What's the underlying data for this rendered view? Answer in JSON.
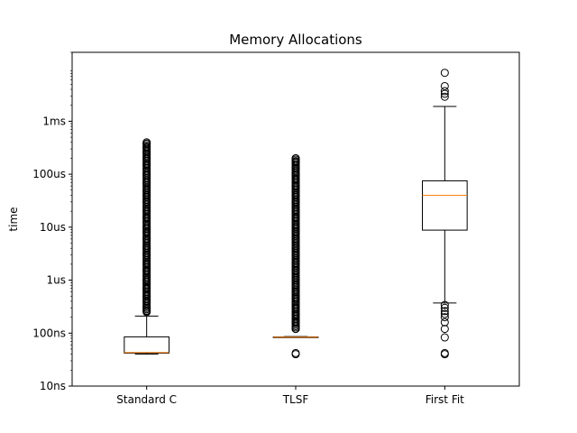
{
  "chart_data": {
    "type": "box",
    "title": "Memory Allocations",
    "xlabel": "",
    "ylabel": "time",
    "y_scale": "log",
    "y_unit": "seconds",
    "ylim": [
      1e-08,
      0.02
    ],
    "y_ticks": [
      {
        "value": 1e-08,
        "label": "10ns"
      },
      {
        "value": 1e-07,
        "label": "100ns"
      },
      {
        "value": 1e-06,
        "label": "1us"
      },
      {
        "value": 1e-05,
        "label": "10us"
      },
      {
        "value": 0.0001,
        "label": "100us"
      },
      {
        "value": 0.001,
        "label": "1ms"
      }
    ],
    "categories": [
      "Standard C",
      "TLSF",
      "First Fit"
    ],
    "boxes": [
      {
        "category": "Standard C",
        "whisker_low": 4e-08,
        "q1": 4.2e-08,
        "median": 4.3e-08,
        "q3": 8.5e-08,
        "whisker_high": 2.1e-07,
        "outliers_low": [],
        "outliers_high_range": [
          2.5e-07,
          0.0004
        ],
        "outliers_high": [
          2.6e-07,
          3e-07,
          4e-07,
          5e-07,
          7e-07,
          1e-06,
          1.5e-06,
          2e-06,
          3e-06,
          4e-06,
          6e-06,
          8e-06,
          1e-05,
          1.5e-05,
          2e-05,
          3e-05,
          4e-05,
          5e-05,
          7e-05,
          0.0001,
          0.00015,
          0.0002,
          0.00026,
          0.00032,
          0.00038
        ]
      },
      {
        "category": "TLSF",
        "whisker_low": 8.3e-08,
        "q1": 8.3e-08,
        "median": 8.4e-08,
        "q3": 8.5e-08,
        "whisker_high": 8.6e-08,
        "outliers_low": [
          4e-08,
          4.2e-08
        ],
        "outliers_high_range": [
          1.2e-07,
          0.0002
        ],
        "outliers_high": [
          1.2e-07,
          1.6e-07,
          2.2e-07,
          3e-07,
          4.5e-07,
          6e-07,
          8e-07,
          1e-06,
          1.5e-06,
          2e-06,
          3e-06,
          4e-06,
          6e-06,
          8e-06,
          1e-05,
          1.5e-05,
          2e-05,
          3e-05,
          4e-05,
          6e-05,
          8e-05,
          0.0001,
          0.00013,
          0.00017,
          0.0002
        ]
      },
      {
        "category": "First Fit",
        "whisker_low": 3.7e-07,
        "q1": 8.8e-06,
        "median": 4e-05,
        "q3": 7.5e-05,
        "whisker_high": 0.0019,
        "outliers_low": [
          4e-08,
          4.2e-08,
          8.3e-08,
          1.2e-07,
          1.6e-07,
          2e-07,
          2.3e-07,
          2.6e-07,
          3e-07,
          3.4e-07
        ],
        "outliers_high": [
          0.0029,
          0.0033,
          0.0037,
          0.0046,
          0.0082
        ]
      }
    ],
    "colors": {
      "box": "#000000",
      "median": "#ff7f0e",
      "outlier": "#000000",
      "background": "#ffffff"
    },
    "grid": false,
    "legend": "none"
  }
}
